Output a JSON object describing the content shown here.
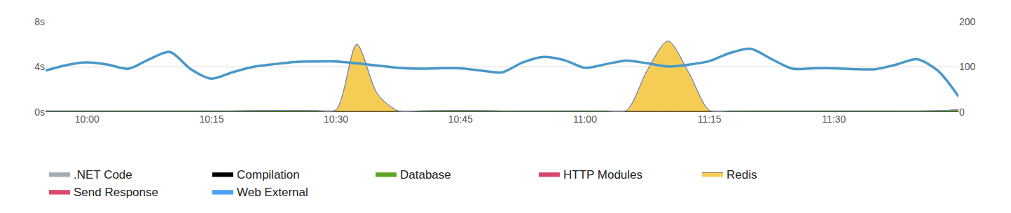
{
  "chart_data": {
    "type": "area",
    "stacked": true,
    "grid": true,
    "legend": "bottom",
    "categories": [
      null,
      null,
      "10:00",
      null,
      null,
      null,
      null,
      null,
      "10:15",
      null,
      null,
      null,
      null,
      null,
      "10:30",
      null,
      null,
      null,
      null,
      null,
      "10:45",
      null,
      null,
      null,
      null,
      null,
      "11:00",
      null,
      null,
      null,
      null,
      null,
      "11:15",
      null,
      null,
      null,
      null,
      null,
      "11:30",
      null,
      null,
      null,
      null,
      null,
      null
    ],
    "ylim": [
      0,
      8
    ],
    "yticks": [
      {
        "value": 0,
        "label": "0s"
      },
      {
        "value": 4,
        "label": "4s"
      },
      {
        "value": 8,
        "label": "8s"
      }
    ],
    "y2lim": [
      0,
      200
    ],
    "y2ticks": [
      0,
      100,
      200
    ],
    "series": [
      {
        "name": ".NET Code",
        "color": "#a2abb8",
        "values": [
          0,
          0,
          0,
          0,
          0,
          0,
          0,
          0,
          0,
          0,
          0,
          0,
          0,
          0,
          0,
          0,
          0,
          0,
          0,
          0,
          0,
          0,
          0,
          0,
          0,
          0,
          0,
          0,
          0,
          0,
          0,
          0,
          0,
          0,
          0,
          0,
          0,
          0,
          0,
          0,
          0,
          0,
          0,
          0,
          0
        ]
      },
      {
        "name": "Compilation",
        "color": "#000000",
        "values": [
          0,
          0,
          0,
          0,
          0,
          0,
          0,
          0,
          0,
          0,
          0,
          0,
          0,
          0,
          0,
          0,
          0,
          0,
          0,
          0,
          0,
          0,
          0,
          0,
          0,
          0,
          0,
          0,
          0,
          0,
          0,
          0,
          0,
          0,
          0,
          0,
          0,
          0,
          0,
          0,
          0,
          0,
          0,
          0,
          0
        ]
      },
      {
        "name": "Database",
        "color": "#5aa624",
        "values": [
          0.1,
          0.1,
          0.1,
          0.1,
          0.1,
          0.1,
          0.1,
          0.1,
          0.1,
          0.1,
          0.12,
          0.14,
          0.14,
          0.12,
          0.1,
          0.1,
          0.1,
          0.1,
          0.1,
          0.12,
          0.14,
          0.12,
          0.1,
          0.1,
          0.1,
          0.1,
          0.1,
          0.1,
          0.1,
          0.1,
          0.1,
          0.1,
          0.1,
          0.1,
          0.1,
          0.1,
          0.1,
          0.1,
          0.1,
          0.1,
          0.1,
          0.1,
          0.1,
          0.12,
          0.2
        ]
      },
      {
        "name": "HTTP Modules",
        "color": "#d9466a",
        "values": [
          0,
          0,
          0,
          0,
          0,
          0,
          0,
          0,
          0,
          0,
          0,
          0,
          0,
          0,
          0,
          0,
          0,
          0,
          0,
          0,
          0,
          0,
          0,
          0,
          0,
          0,
          0,
          0,
          0,
          0,
          0,
          0,
          0,
          0,
          0,
          0,
          0,
          0,
          0,
          0,
          0,
          0,
          0,
          0,
          0
        ]
      },
      {
        "name": "Redis",
        "color": "#f5cd54",
        "values": [
          0,
          0,
          0,
          0,
          0,
          0,
          0,
          0,
          0,
          0,
          0,
          0,
          0,
          0,
          0.1,
          5.9,
          1.5,
          0,
          0,
          0,
          0,
          0,
          0,
          0,
          0,
          0,
          0,
          0,
          0.05,
          3.6,
          6.2,
          3.4,
          0.05,
          0,
          0,
          0,
          0,
          0,
          0,
          0,
          0,
          0,
          0,
          0,
          0
        ]
      },
      {
        "name": "Send Response",
        "color": "#dc4a6b",
        "values": [
          0,
          0,
          0,
          0,
          0,
          0,
          0,
          0,
          0,
          0,
          0,
          0,
          0,
          0,
          0,
          0,
          0,
          0,
          0,
          0,
          0,
          0,
          0,
          0,
          0,
          0,
          0,
          0,
          0,
          0,
          0,
          0,
          0,
          0,
          0,
          0,
          0,
          0,
          0,
          0,
          0,
          0,
          0,
          0,
          0
        ]
      },
      {
        "name": "Web External",
        "color": "#4aa3f5",
        "values": [
          0,
          0,
          0,
          0,
          0,
          0,
          0,
          0,
          0,
          0,
          0,
          0,
          0,
          0,
          0,
          0,
          0,
          0,
          0,
          0,
          0,
          0,
          0,
          0,
          0,
          0,
          0,
          0,
          0,
          0,
          0,
          0,
          0,
          0,
          0,
          0,
          0,
          0,
          0,
          0,
          0,
          0,
          0,
          0,
          0
        ]
      },
      {
        "type": "line",
        "axis": "y2",
        "color": "#4a98c9",
        "values": [
          92,
          104,
          110,
          105,
          96,
          117,
          133,
          95,
          74,
          88,
          100,
          106,
          111,
          112,
          112,
          108,
          103,
          98,
          96,
          97,
          97,
          92,
          88,
          110,
          122,
          115,
          98,
          106,
          114,
          108,
          101,
          105,
          113,
          131,
          140,
          117,
          96,
          97,
          97,
          95,
          95,
          105,
          117,
          92,
          35
        ]
      }
    ]
  }
}
